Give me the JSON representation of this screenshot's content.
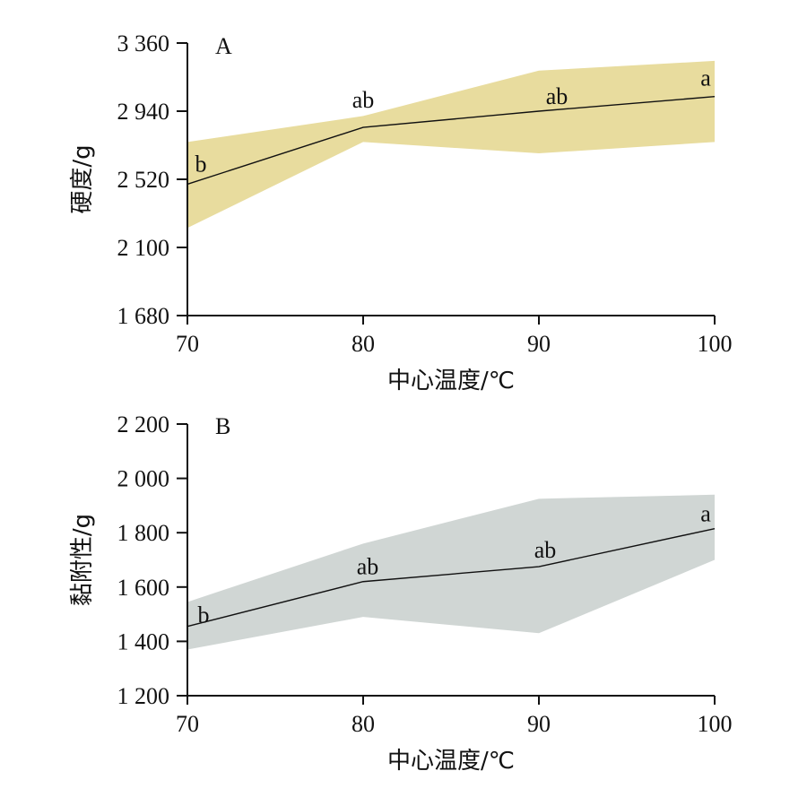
{
  "chart_data": [
    {
      "type": "line",
      "panel_label": "A",
      "xlabel": "中心温度/℃",
      "ylabel": "硬度/g",
      "x": [
        70,
        80,
        90,
        100
      ],
      "x_ticks": [
        70,
        80,
        90,
        100
      ],
      "x_tick_labels": [
        "70",
        "80",
        "90",
        "100"
      ],
      "y_ticks": [
        1680,
        2100,
        2520,
        2940,
        3360
      ],
      "y_tick_labels": [
        "1 680",
        "2 100",
        "2 520",
        "2 940",
        "3 360"
      ],
      "ylim": [
        1680,
        3360
      ],
      "xlim": [
        70,
        100
      ],
      "series": [
        {
          "values": [
            2490,
            2840,
            2940,
            3030
          ],
          "lower": [
            2220,
            2750,
            2680,
            2750
          ],
          "upper": [
            2750,
            2910,
            3190,
            3250
          ],
          "significance": [
            "b",
            "ab",
            "ab",
            "a"
          ],
          "band_color": "#e8dc9e",
          "line_color": "#111111"
        }
      ],
      "grid": false
    },
    {
      "type": "line",
      "panel_label": "B",
      "xlabel": "中心温度/℃",
      "ylabel": "黏附性/g",
      "x": [
        70,
        80,
        90,
        100
      ],
      "x_ticks": [
        70,
        80,
        90,
        100
      ],
      "x_tick_labels": [
        "70",
        "80",
        "90",
        "100"
      ],
      "y_ticks": [
        1200,
        1400,
        1600,
        1800,
        2000,
        2200
      ],
      "y_tick_labels": [
        "1 200",
        "1 400",
        "1 600",
        "1 800",
        "2 000",
        "2 200"
      ],
      "ylim": [
        1200,
        2200
      ],
      "xlim": [
        70,
        100
      ],
      "series": [
        {
          "values": [
            1455,
            1620,
            1675,
            1815
          ],
          "lower": [
            1370,
            1490,
            1430,
            1700
          ],
          "upper": [
            1545,
            1760,
            1925,
            1940
          ],
          "significance": [
            "b",
            "ab",
            "ab",
            "a"
          ],
          "band_color": "#d0d6d4",
          "line_color": "#111111"
        }
      ],
      "grid": false
    }
  ]
}
